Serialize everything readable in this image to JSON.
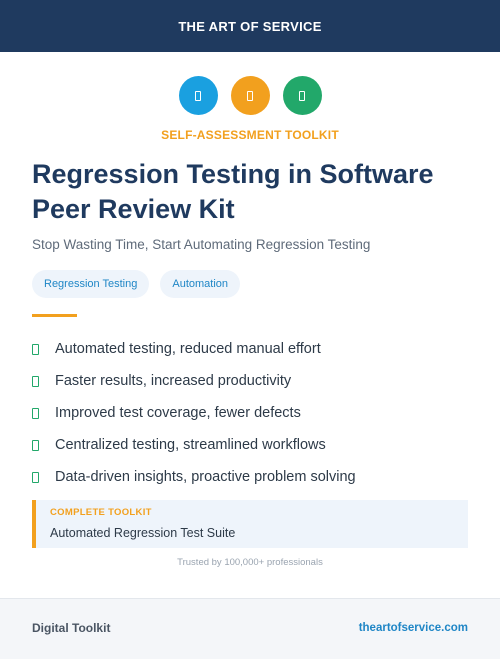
{
  "header": {
    "brand": "THE ART OF SERVICE"
  },
  "icons": [
    {
      "name": "doc-icon",
      "color": "#1aa0e0"
    },
    {
      "name": "doc-icon",
      "color": "#f2a01e"
    },
    {
      "name": "doc-icon",
      "color": "#22a86a"
    }
  ],
  "hero": {
    "eyebrow": "SELF-ASSESSMENT TOOLKIT",
    "title": "Regression Testing in Software Peer Review Kit",
    "subtitle": "Stop Wasting Time, Start Automating Regression Testing",
    "tags": [
      "Regression Testing",
      "Automation"
    ]
  },
  "benefits": [
    "Automated testing, reduced manual effort",
    "Faster results, increased productivity",
    "Improved test coverage, fewer defects",
    "Centralized testing, streamlined workflows",
    "Data-driven insights, proactive problem solving"
  ],
  "callout": {
    "label": "COMPLETE TOOLKIT",
    "text": "Automated Regression Test Suite"
  },
  "trusted": "Trusted by 100,000+ professionals",
  "footer": {
    "left": "Digital Toolkit",
    "right": "theartofservice.com"
  },
  "colors": {
    "navy": "#1f3a5f",
    "orange": "#f2a01e",
    "blue": "#1f86c6",
    "green": "#22a86a"
  }
}
